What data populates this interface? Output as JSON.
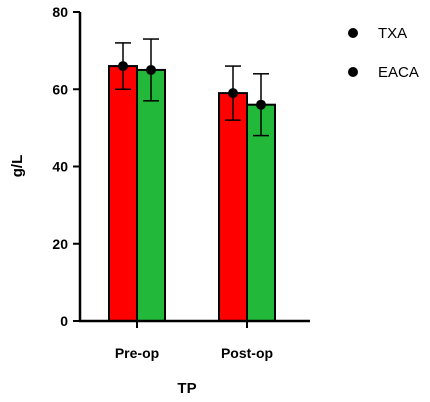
{
  "chart_data": {
    "type": "bar",
    "title": "",
    "xlabel": "TP",
    "ylabel": "g/L",
    "categories": [
      "Pre-op",
      "Post-op"
    ],
    "series": [
      {
        "name": "TXA",
        "values": [
          66,
          59
        ],
        "error": [
          6,
          7
        ],
        "color": "#ff0000"
      },
      {
        "name": "EACA",
        "values": [
          65,
          56
        ],
        "error": [
          8,
          8
        ],
        "color": "#22b83a"
      }
    ],
    "ylim": [
      0,
      80
    ],
    "yticks": [
      0,
      20,
      40,
      60,
      80
    ],
    "grid": false,
    "legend_position": "top-right"
  }
}
